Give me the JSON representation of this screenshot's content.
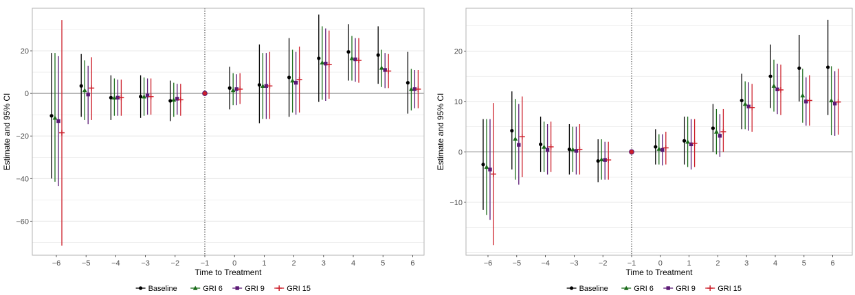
{
  "colors": {
    "Baseline": "#000000",
    "GRI 6": "#1a6b1a",
    "GRI 9": "#5b1a75",
    "GRI 15": "#cc1f2a",
    "panel_border": "#b3b3b3",
    "grid": "#e0e0e0",
    "zero_line": "#999999"
  },
  "legend": {
    "items": [
      {
        "label": "Baseline",
        "marker": "circle"
      },
      {
        "label": "GRI 6",
        "marker": "triangle"
      },
      {
        "label": "GRI 9",
        "marker": "square"
      },
      {
        "label": "GRI 15",
        "marker": "plus"
      }
    ]
  },
  "chart_data": [
    {
      "type": "scatter",
      "xlabel": "Time to Treatment",
      "ylabel": "Estimate and 95% CI",
      "x_ticks": [
        -6,
        -5,
        -4,
        -3,
        -2,
        -1,
        0,
        1,
        2,
        3,
        4,
        5,
        6
      ],
      "y_ticks": [
        20,
        0,
        -20,
        -40,
        -60
      ],
      "ylim": [
        -76,
        40
      ],
      "grid": true,
      "reference_vline_x": -1,
      "reference_hline_y": 0,
      "legend_position": "bottom",
      "series": [
        {
          "name": "Baseline",
          "points": [
            {
              "x": -6,
              "y": -10.5,
              "lo": -40,
              "hi": 19
            },
            {
              "x": -5,
              "y": 3.5,
              "lo": -11,
              "hi": 18.5
            },
            {
              "x": -4,
              "y": -2,
              "lo": -12.5,
              "hi": 8.5
            },
            {
              "x": -3,
              "y": -1.5,
              "lo": -11.5,
              "hi": 8.5
            },
            {
              "x": -2,
              "y": -3.5,
              "lo": -13,
              "hi": 6
            },
            {
              "x": -1,
              "y": 0,
              "lo": 0,
              "hi": 0
            },
            {
              "x": 0,
              "y": 2.5,
              "lo": -7.5,
              "hi": 12.5
            },
            {
              "x": 1,
              "y": 4,
              "lo": -14,
              "hi": 23
            },
            {
              "x": 2,
              "y": 7.5,
              "lo": -11,
              "hi": 26
            },
            {
              "x": 3,
              "y": 16.5,
              "lo": -4,
              "hi": 37
            },
            {
              "x": 4,
              "y": 19.5,
              "lo": 6,
              "hi": 32.5
            },
            {
              "x": 5,
              "y": 18,
              "lo": 4.5,
              "hi": 31.5
            },
            {
              "x": 6,
              "y": 5,
              "lo": -9.5,
              "hi": 19.5
            }
          ]
        },
        {
          "name": "GRI 6",
          "points": [
            {
              "x": -6,
              "y": -11.5,
              "lo": -41.5,
              "hi": 19
            },
            {
              "x": -5,
              "y": 1.5,
              "lo": -12.5,
              "hi": 15.5
            },
            {
              "x": -4,
              "y": -2,
              "lo": -10.5,
              "hi": 7
            },
            {
              "x": -3,
              "y": -1.5,
              "lo": -10.5,
              "hi": 7.5
            },
            {
              "x": -2,
              "y": -3,
              "lo": -11,
              "hi": 5
            },
            {
              "x": -1,
              "y": 0,
              "lo": 0,
              "hi": 0
            },
            {
              "x": 0,
              "y": 1.5,
              "lo": -5.5,
              "hi": 9.5
            },
            {
              "x": 1,
              "y": 3.5,
              "lo": -12,
              "hi": 19
            },
            {
              "x": 2,
              "y": 6,
              "lo": -9,
              "hi": 20.5
            },
            {
              "x": 3,
              "y": 14.5,
              "lo": -3,
              "hi": 31.5
            },
            {
              "x": 4,
              "y": 16.5,
              "lo": 6,
              "hi": 27
            },
            {
              "x": 5,
              "y": 12,
              "lo": 3,
              "hi": 20.5
            },
            {
              "x": 6,
              "y": 2,
              "lo": -8,
              "hi": 11.5
            }
          ]
        },
        {
          "name": "GRI 9",
          "points": [
            {
              "x": -6,
              "y": -13,
              "lo": -43.5,
              "hi": 17.5
            },
            {
              "x": -5,
              "y": -0.5,
              "lo": -14.5,
              "hi": 13
            },
            {
              "x": -4,
              "y": -2,
              "lo": -10.5,
              "hi": 6.5
            },
            {
              "x": -3,
              "y": -1,
              "lo": -10,
              "hi": 7
            },
            {
              "x": -2,
              "y": -2.5,
              "lo": -10,
              "hi": 4.5
            },
            {
              "x": -1,
              "y": 0,
              "lo": 0,
              "hi": 0
            },
            {
              "x": 0,
              "y": 2,
              "lo": -5.5,
              "hi": 9
            },
            {
              "x": 1,
              "y": 3.5,
              "lo": -12,
              "hi": 19
            },
            {
              "x": 2,
              "y": 5,
              "lo": -10,
              "hi": 19.5
            },
            {
              "x": 3,
              "y": 14,
              "lo": -3.5,
              "hi": 30.5
            },
            {
              "x": 4,
              "y": 16,
              "lo": 5.5,
              "hi": 26
            },
            {
              "x": 5,
              "y": 11,
              "lo": 2.5,
              "hi": 19
            },
            {
              "x": 6,
              "y": 2,
              "lo": -7,
              "hi": 11
            }
          ]
        },
        {
          "name": "GRI 15",
          "points": [
            {
              "x": -6,
              "y": -18.5,
              "lo": -71.5,
              "hi": 34.5
            },
            {
              "x": -5,
              "y": 2.5,
              "lo": -12.5,
              "hi": 17
            },
            {
              "x": -4,
              "y": -2,
              "lo": -10.5,
              "hi": 6.5
            },
            {
              "x": -3,
              "y": -1.5,
              "lo": -10,
              "hi": 7
            },
            {
              "x": -2,
              "y": -3,
              "lo": -10.5,
              "hi": 4.5
            },
            {
              "x": -1,
              "y": 0,
              "lo": 0,
              "hi": 0
            },
            {
              "x": 0,
              "y": 2,
              "lo": -5,
              "hi": 9.5
            },
            {
              "x": 1,
              "y": 3.5,
              "lo": -12,
              "hi": 19.5
            },
            {
              "x": 2,
              "y": 6.5,
              "lo": -9,
              "hi": 22
            },
            {
              "x": 3,
              "y": 13.5,
              "lo": -2.5,
              "hi": 29.5
            },
            {
              "x": 4,
              "y": 15.5,
              "lo": 5,
              "hi": 26
            },
            {
              "x": 5,
              "y": 10.5,
              "lo": 2.5,
              "hi": 18.5
            },
            {
              "x": 6,
              "y": 2,
              "lo": -7,
              "hi": 11
            }
          ]
        }
      ]
    },
    {
      "type": "scatter",
      "xlabel": "Time to Treatment",
      "ylabel": "Estimate and 95% CI",
      "x_ticks": [
        -6,
        -5,
        -4,
        -3,
        -2,
        -1,
        0,
        1,
        2,
        3,
        4,
        5,
        6
      ],
      "y_ticks": [
        20,
        10,
        0,
        -10
      ],
      "ylim": [
        -20.5,
        28.5
      ],
      "grid": true,
      "reference_vline_x": -1,
      "reference_hline_y": 0,
      "legend_position": "bottom",
      "series": [
        {
          "name": "Baseline",
          "points": [
            {
              "x": -6,
              "y": -2.5,
              "lo": -11.5,
              "hi": 6.5
            },
            {
              "x": -5,
              "y": 4.2,
              "lo": -3.5,
              "hi": 12
            },
            {
              "x": -4,
              "y": 1.5,
              "lo": -4,
              "hi": 7
            },
            {
              "x": -3,
              "y": 0.5,
              "lo": -4.5,
              "hi": 5.5
            },
            {
              "x": -2,
              "y": -1.8,
              "lo": -6,
              "hi": 2.5
            },
            {
              "x": -1,
              "y": 0,
              "lo": 0,
              "hi": 0
            },
            {
              "x": 0,
              "y": 1,
              "lo": -2.5,
              "hi": 4.5
            },
            {
              "x": 1,
              "y": 2.2,
              "lo": -2.5,
              "hi": 7
            },
            {
              "x": 2,
              "y": 4.7,
              "lo": 0,
              "hi": 9.5
            },
            {
              "x": 3,
              "y": 10.2,
              "lo": 4.5,
              "hi": 15.5
            },
            {
              "x": 4,
              "y": 15,
              "lo": 8.7,
              "hi": 21.3
            },
            {
              "x": 5,
              "y": 16.6,
              "lo": 10,
              "hi": 23.2
            },
            {
              "x": 6,
              "y": 16.8,
              "lo": 7.3,
              "hi": 26.2
            }
          ]
        },
        {
          "name": "GRI 6",
          "points": [
            {
              "x": -6,
              "y": -3,
              "lo": -12.5,
              "hi": 6.5
            },
            {
              "x": -5,
              "y": 2.6,
              "lo": -5.5,
              "hi": 10.5
            },
            {
              "x": -4,
              "y": 1,
              "lo": -4,
              "hi": 6
            },
            {
              "x": -3,
              "y": 0.5,
              "lo": -4,
              "hi": 5
            },
            {
              "x": -2,
              "y": -1.5,
              "lo": -5.5,
              "hi": 2.5
            },
            {
              "x": -1,
              "y": 0,
              "lo": 0,
              "hi": 0
            },
            {
              "x": 0,
              "y": 0.6,
              "lo": -2.5,
              "hi": 3.5
            },
            {
              "x": 1,
              "y": 2,
              "lo": -3,
              "hi": 7
            },
            {
              "x": 2,
              "y": 4,
              "lo": -0.5,
              "hi": 8.5
            },
            {
              "x": 3,
              "y": 9.5,
              "lo": 4.5,
              "hi": 14
            },
            {
              "x": 4,
              "y": 13.1,
              "lo": 8,
              "hi": 18.3
            },
            {
              "x": 5,
              "y": 11.2,
              "lo": 5.8,
              "hi": 16.5
            },
            {
              "x": 6,
              "y": 10.2,
              "lo": 3.3,
              "hi": 17
            }
          ]
        },
        {
          "name": "GRI 9",
          "points": [
            {
              "x": -6,
              "y": -3.5,
              "lo": -13.5,
              "hi": 6.5
            },
            {
              "x": -5,
              "y": 1.4,
              "lo": -6.5,
              "hi": 9.5
            },
            {
              "x": -4,
              "y": 0.4,
              "lo": -4.5,
              "hi": 5.5
            },
            {
              "x": -3,
              "y": 0.2,
              "lo": -4.5,
              "hi": 5
            },
            {
              "x": -2,
              "y": -1.6,
              "lo": -5.5,
              "hi": 2
            },
            {
              "x": -1,
              "y": 0,
              "lo": 0,
              "hi": 0
            },
            {
              "x": 0,
              "y": 0.4,
              "lo": -2.7,
              "hi": 3.5
            },
            {
              "x": 1,
              "y": 1.5,
              "lo": -3.5,
              "hi": 6.5
            },
            {
              "x": 2,
              "y": 3.2,
              "lo": -1,
              "hi": 7.5
            },
            {
              "x": 3,
              "y": 9,
              "lo": 4.2,
              "hi": 13.8
            },
            {
              "x": 4,
              "y": 12.4,
              "lo": 7.5,
              "hi": 17.5
            },
            {
              "x": 5,
              "y": 10,
              "lo": 5.2,
              "hi": 14.8
            },
            {
              "x": 6,
              "y": 9.6,
              "lo": 3.2,
              "hi": 16
            }
          ]
        },
        {
          "name": "GRI 15",
          "points": [
            {
              "x": -6,
              "y": -4.4,
              "lo": -18.5,
              "hi": 9.7
            },
            {
              "x": -5,
              "y": 3,
              "lo": -5,
              "hi": 11
            },
            {
              "x": -4,
              "y": 1,
              "lo": -4,
              "hi": 6
            },
            {
              "x": -3,
              "y": 0.5,
              "lo": -4.5,
              "hi": 5.5
            },
            {
              "x": -2,
              "y": -1.6,
              "lo": -5.5,
              "hi": 2
            },
            {
              "x": -1,
              "y": 0,
              "lo": 0,
              "hi": 0
            },
            {
              "x": 0,
              "y": 0.8,
              "lo": -2.5,
              "hi": 4
            },
            {
              "x": 1,
              "y": 1.7,
              "lo": -3,
              "hi": 6.5
            },
            {
              "x": 2,
              "y": 4,
              "lo": 0,
              "hi": 8.5
            },
            {
              "x": 3,
              "y": 8.8,
              "lo": 4,
              "hi": 13.5
            },
            {
              "x": 4,
              "y": 12.3,
              "lo": 7.3,
              "hi": 17.3
            },
            {
              "x": 5,
              "y": 10.2,
              "lo": 5.2,
              "hi": 15.2
            },
            {
              "x": 6,
              "y": 9.9,
              "lo": 3.4,
              "hi": 16.5
            }
          ]
        }
      ]
    }
  ]
}
